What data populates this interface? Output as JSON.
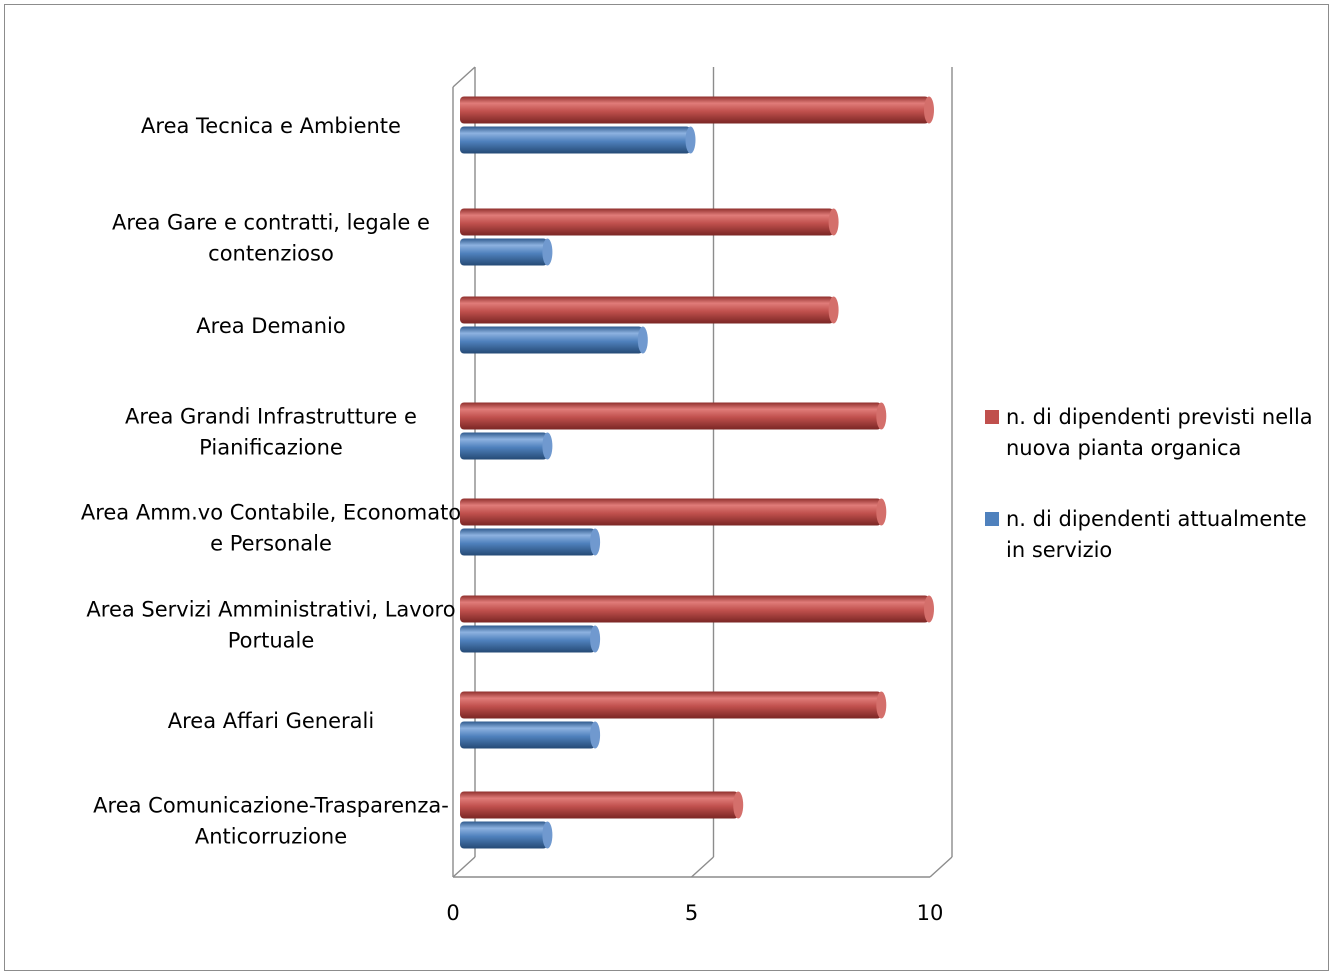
{
  "chart_data": {
    "type": "bar",
    "orientation": "horizontal",
    "style": "3d-cylinder",
    "categories": [
      "Area Tecnica e Ambiente",
      "Area Gare e contratti, legale e contenzioso",
      "Area Demanio",
      "Area Grandi Infrastrutture e Pianificazione",
      "Area Amm.vo Contabile, Economato e Personale",
      "Area Servizi Amministrativi, Lavoro Portuale",
      "Area Affari Generali",
      "Area Comunicazione-Trasparenza-Anticorruzione"
    ],
    "category_lines": [
      [
        "Area Tecnica e Ambiente"
      ],
      [
        "Area Gare e contratti, legale e",
        "contenzioso"
      ],
      [
        "Area Demanio"
      ],
      [
        "Area Grandi Infrastrutture e",
        "Pianificazione"
      ],
      [
        "Area Amm.vo Contabile, Economato",
        "e Personale"
      ],
      [
        "Area Servizi Amministrativi, Lavoro",
        "Portuale"
      ],
      [
        "Area Affari Generali"
      ],
      [
        "Area Comunicazione-Trasparenza-",
        "Anticorruzione"
      ]
    ],
    "series": [
      {
        "name": "n. di dipendenti previsti nella nuova pianta organica",
        "legend_lines": [
          "n. di dipendenti previsti nella",
          "nuova pianta organica"
        ],
        "color": "#c0504d",
        "values": [
          10,
          8,
          8,
          9,
          9,
          10,
          9,
          6
        ]
      },
      {
        "name": "n. di dipendenti attualmente in servizio",
        "legend_lines": [
          "n. di dipendenti attualmente",
          "in servizio"
        ],
        "color": "#4f81bd",
        "values": [
          5,
          2,
          4,
          2,
          3,
          3,
          3,
          2
        ]
      }
    ],
    "xlim": [
      0,
      10
    ],
    "xticks": [
      0,
      5,
      10
    ],
    "xtick_labels": [
      "0",
      "5",
      "10"
    ],
    "grid": true,
    "legend_position": "right",
    "title": "",
    "xlabel": "",
    "ylabel": ""
  }
}
